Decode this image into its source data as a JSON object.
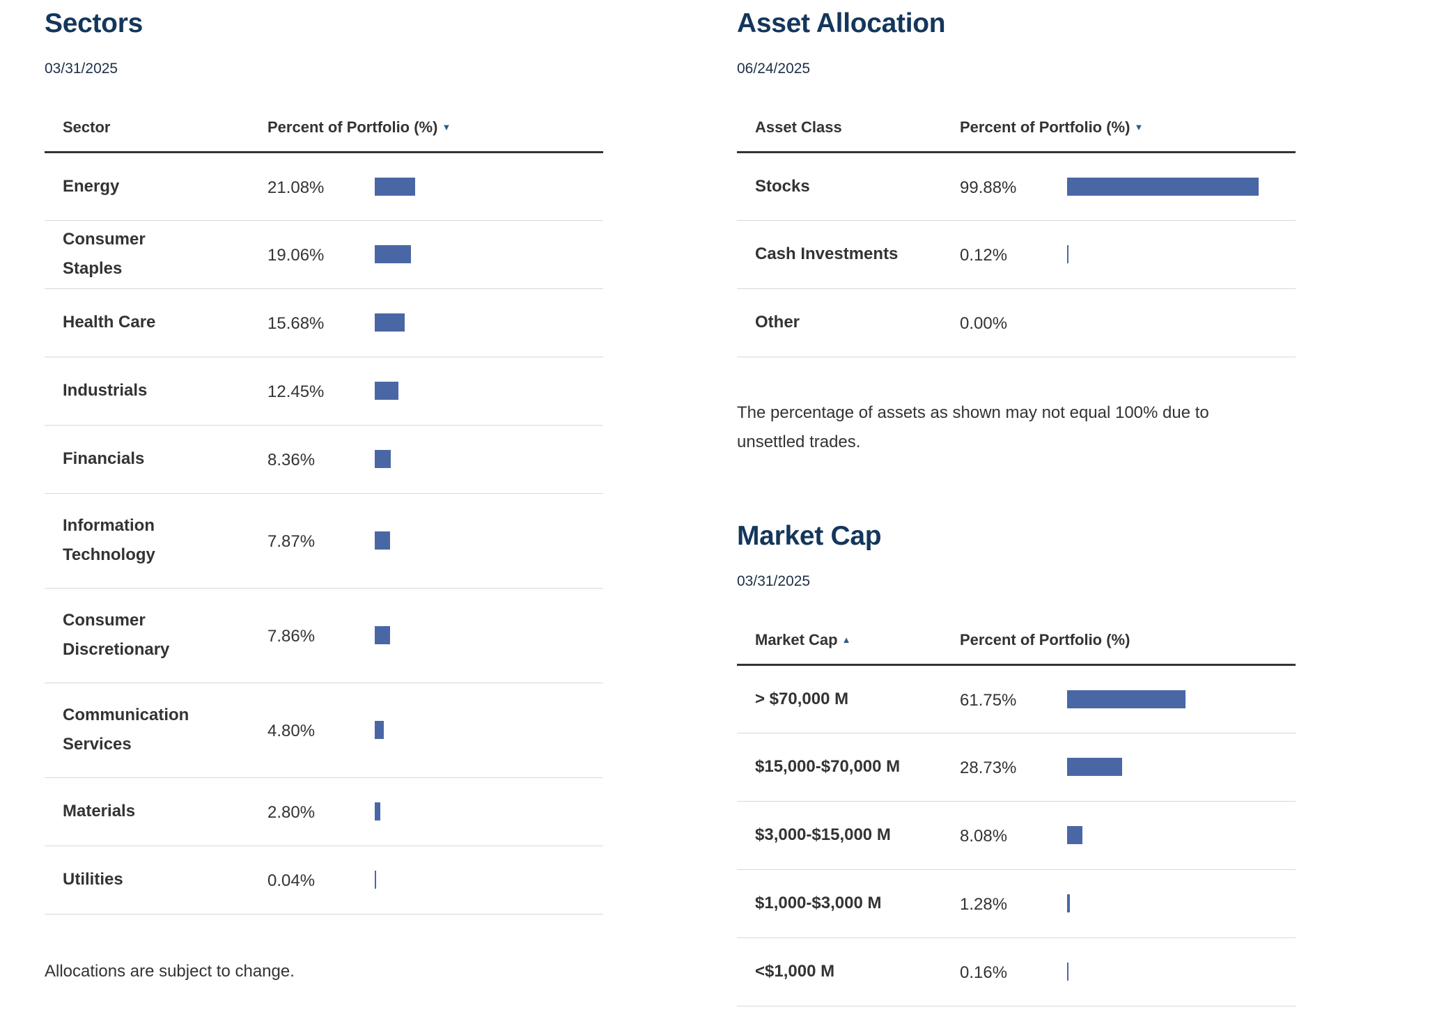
{
  "sectors": {
    "title": "Sectors",
    "as_of": "03/31/2025",
    "col1": "Sector",
    "col2": "Percent of Portfolio (%)",
    "sort_indicator": "▼",
    "rows": [
      {
        "name": "Energy",
        "pct": "21.08%",
        "value": 21.08
      },
      {
        "name": "Consumer Staples",
        "pct": "19.06%",
        "value": 19.06
      },
      {
        "name": "Health Care",
        "pct": "15.68%",
        "value": 15.68
      },
      {
        "name": "Industrials",
        "pct": "12.45%",
        "value": 12.45
      },
      {
        "name": "Financials",
        "pct": "8.36%",
        "value": 8.36
      },
      {
        "name": "Information Technology",
        "pct": "7.87%",
        "value": 7.87
      },
      {
        "name": "Consumer Discretionary",
        "pct": "7.86%",
        "value": 7.86
      },
      {
        "name": "Communication Services",
        "pct": "4.80%",
        "value": 4.8
      },
      {
        "name": "Materials",
        "pct": "2.80%",
        "value": 2.8
      },
      {
        "name": "Utilities",
        "pct": "0.04%",
        "value": 0.04
      }
    ],
    "note": "Allocations are subject to change."
  },
  "asset_allocation": {
    "title": "Asset Allocation",
    "as_of": "06/24/2025",
    "col1": "Asset Class",
    "col2": "Percent of Portfolio (%)",
    "sort_indicator": "▼",
    "rows": [
      {
        "name": "Stocks",
        "pct": "99.88%",
        "value": 99.88
      },
      {
        "name": "Cash Investments",
        "pct": "0.12%",
        "value": 0.12
      },
      {
        "name": "Other",
        "pct": "0.00%",
        "value": 0.0
      }
    ],
    "note": "The percentage of assets as shown may not equal 100% due to unsettled trades."
  },
  "market_cap": {
    "title": "Market Cap",
    "as_of": "03/31/2025",
    "col1": "Market Cap",
    "col2": "Percent of Portfolio (%)",
    "sort_indicator": "▲",
    "rows": [
      {
        "name": "> $70,000 M",
        "pct": "61.75%",
        "value": 61.75
      },
      {
        "name": "$15,000-$70,000 M",
        "pct": "28.73%",
        "value": 28.73
      },
      {
        "name": "$3,000-$15,000 M",
        "pct": "8.08%",
        "value": 8.08
      },
      {
        "name": "$1,000-$3,000 M",
        "pct": "1.28%",
        "value": 1.28
      },
      {
        "name": "<$1,000 M",
        "pct": "0.16%",
        "value": 0.16
      }
    ]
  },
  "colors": {
    "bar": "#4a67a5",
    "title": "#14365c"
  }
}
